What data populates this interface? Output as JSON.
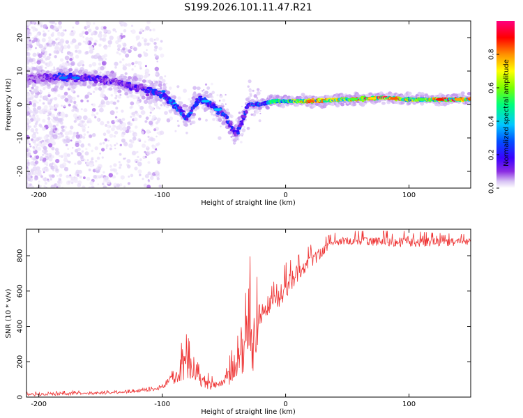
{
  "title": "S199.2026.101.11.47.R21",
  "chart_data": [
    {
      "type": "heatmap",
      "panel": "spectrogram",
      "xlabel": "Height of straight line (km)",
      "ylabel": "Frequency (Hz)",
      "xlim": [
        -210,
        150
      ],
      "ylim": [
        -25,
        25
      ],
      "xticks": [
        -200,
        -100,
        0,
        100
      ],
      "yticks": [
        -20,
        -10,
        0,
        10,
        20
      ],
      "colorbar": {
        "label": "Normalized spectral amplitude",
        "range": [
          0,
          1
        ],
        "ticks": [
          0.0,
          0.2,
          0.4,
          0.6,
          0.8
        ],
        "colormap": [
          "#ffffff",
          "#d8c4f4",
          "#8a2be2",
          "#3a00ff",
          "#0050ff",
          "#00c8ff",
          "#00ff7a",
          "#7aff00",
          "#ffff00",
          "#ff9000",
          "#ff0000",
          "#ff0080"
        ]
      },
      "ridge": {
        "x": [
          -200,
          -180,
          -160,
          -140,
          -120,
          -100,
          -90,
          -80,
          -70,
          -60,
          -50,
          -40,
          -30,
          -20,
          -10,
          0,
          20,
          50,
          80,
          100,
          150
        ],
        "frequency": [
          8,
          8,
          8,
          7,
          5,
          3,
          0,
          -4,
          2,
          0,
          -3,
          -9,
          0,
          0,
          1,
          1,
          1,
          1.5,
          2,
          1.5,
          1.5
        ],
        "amplitude": [
          0.15,
          0.3,
          0.25,
          0.2,
          0.25,
          0.3,
          0.35,
          0.3,
          0.35,
          0.3,
          0.3,
          0.25,
          0.3,
          0.35,
          0.5,
          0.5,
          0.75,
          0.65,
          0.9,
          0.6,
          0.8
        ]
      }
    },
    {
      "type": "line",
      "panel": "snr",
      "xlabel": "Height of straight line (km)",
      "ylabel": "SNR (10 * v/v)",
      "xlim": [
        -210,
        150
      ],
      "ylim": [
        0,
        950
      ],
      "xticks": [
        -200,
        -100,
        0,
        100
      ],
      "yticks": [
        0,
        200,
        400,
        600,
        800
      ],
      "color": "#ee3333",
      "envelope": {
        "x": [
          -210,
          -180,
          -150,
          -130,
          -115,
          -100,
          -90,
          -85,
          -80,
          -75,
          -70,
          -65,
          -60,
          -55,
          -50,
          -45,
          -40,
          -35,
          -32,
          -30,
          -28,
          -25,
          -22,
          -20,
          -15,
          -10,
          -5,
          0,
          10,
          20,
          30,
          40,
          50,
          60,
          80,
          100,
          120,
          150
        ],
        "low": [
          5,
          10,
          15,
          20,
          30,
          40,
          70,
          90,
          80,
          100,
          60,
          50,
          40,
          60,
          60,
          70,
          80,
          120,
          200,
          250,
          150,
          100,
          300,
          400,
          450,
          480,
          500,
          550,
          650,
          720,
          800,
          850,
          860,
          860,
          850,
          850,
          850,
          860
        ],
        "high": [
          30,
          35,
          35,
          40,
          50,
          70,
          220,
          300,
          360,
          250,
          180,
          150,
          120,
          100,
          150,
          250,
          400,
          520,
          600,
          760,
          820,
          650,
          700,
          620,
          560,
          650,
          680,
          760,
          800,
          860,
          900,
          930,
          940,
          940,
          940,
          940,
          930,
          920
        ]
      }
    }
  ]
}
